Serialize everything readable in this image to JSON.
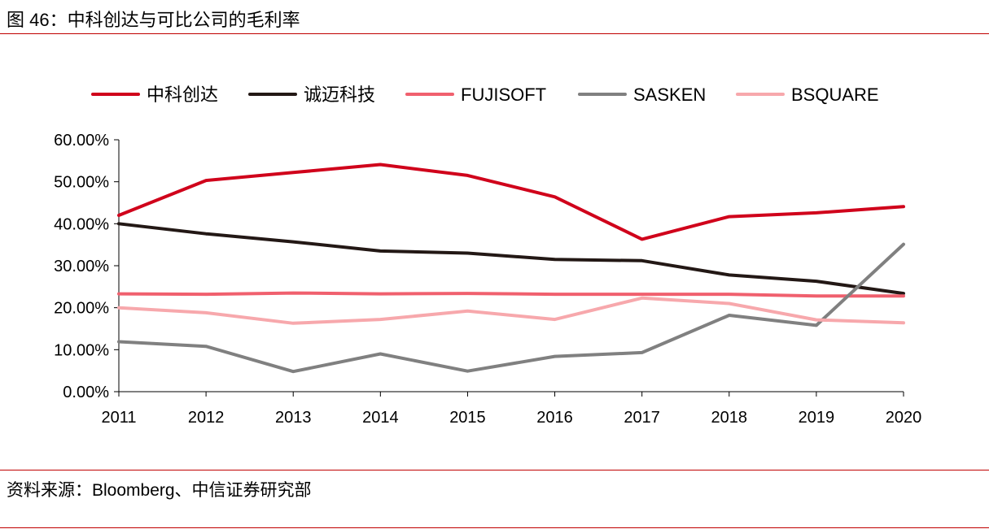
{
  "header": {
    "figure_title": "图 46：中科创达与可比公司的毛利率"
  },
  "footer": {
    "source": "资料来源：Bloomberg、中信证券研究部"
  },
  "chart_data": {
    "type": "line",
    "title": "图 46：中科创达与可比公司的毛利率",
    "xlabel": "",
    "ylabel": "",
    "x": [
      "2011",
      "2012",
      "2013",
      "2014",
      "2015",
      "2016",
      "2017",
      "2018",
      "2019",
      "2020"
    ],
    "ylim": [
      0,
      60
    ],
    "yticks": [
      "0.00%",
      "10.00%",
      "20.00%",
      "30.00%",
      "40.00%",
      "50.00%",
      "60.00%"
    ],
    "ytick_values": [
      0,
      10,
      20,
      30,
      40,
      50,
      60
    ],
    "grid": false,
    "legend_position": "top",
    "series": [
      {
        "name": "中科创达",
        "color": "#d0021b",
        "values": [
          42.0,
          50.3,
          52.2,
          54.1,
          51.5,
          46.4,
          36.3,
          41.7,
          42.6,
          44.1
        ]
      },
      {
        "name": "诚迈科技",
        "color": "#231815",
        "values": [
          40.0,
          37.6,
          35.7,
          33.5,
          33.0,
          31.5,
          31.2,
          27.8,
          26.3,
          23.4
        ]
      },
      {
        "name": "FUJISOFT",
        "color": "#f0606e",
        "values": [
          23.3,
          23.2,
          23.5,
          23.3,
          23.4,
          23.2,
          23.2,
          23.2,
          22.8,
          22.8
        ]
      },
      {
        "name": "SASKEN",
        "color": "#808080",
        "values": [
          11.9,
          10.8,
          4.8,
          9.0,
          4.9,
          8.4,
          9.3,
          18.2,
          15.8,
          35.1
        ]
      },
      {
        "name": "BSQUARE",
        "color": "#f7a8ac",
        "values": [
          20.0,
          18.8,
          16.3,
          17.2,
          19.2,
          17.2,
          22.3,
          21.0,
          17.1,
          16.4
        ]
      }
    ]
  }
}
